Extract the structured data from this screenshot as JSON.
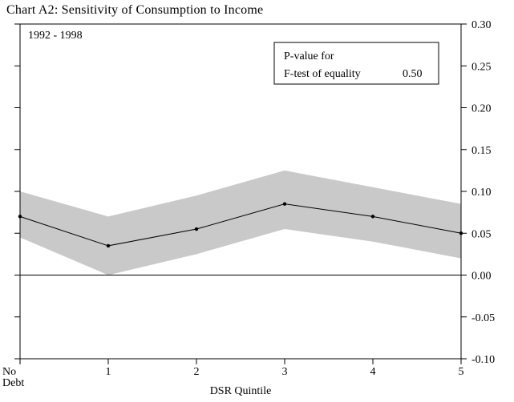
{
  "page": {
    "title": "Chart A2: Sensitivity of Consumption to Income"
  },
  "chart_data": {
    "type": "line",
    "title": "Chart A2: Sensitivity of Consumption to Income",
    "subtitle": "1992 - 1998",
    "xlabel": "DSR Quintile",
    "ylabel": "",
    "categories": [
      "No\nDebt",
      "1",
      "2",
      "3",
      "4",
      "5"
    ],
    "series": [
      {
        "name": "Sensitivity of consumption to income",
        "values": [
          0.07,
          0.035,
          0.055,
          0.085,
          0.07,
          0.05
        ]
      },
      {
        "name": "Confidence band upper",
        "values": [
          0.1,
          0.07,
          0.095,
          0.125,
          0.105,
          0.085
        ]
      },
      {
        "name": "Confidence band lower",
        "values": [
          0.045,
          0.0,
          0.025,
          0.055,
          0.04,
          0.02
        ]
      }
    ],
    "ylim": [
      -0.1,
      0.3
    ],
    "ytick_step": 0.05,
    "ytick_labels": [
      "0.30",
      "0.25",
      "0.20",
      "0.15",
      "0.10",
      "0.05",
      "0.00",
      "-0.05",
      "-0.10"
    ],
    "yaxis_side": "right",
    "grid": false,
    "zero_line": true,
    "band_color": "#c9c9c9",
    "line_color": "#000000",
    "annotation": {
      "lines": [
        "P-value for",
        "F-test of equality"
      ],
      "value": "0.50"
    }
  }
}
